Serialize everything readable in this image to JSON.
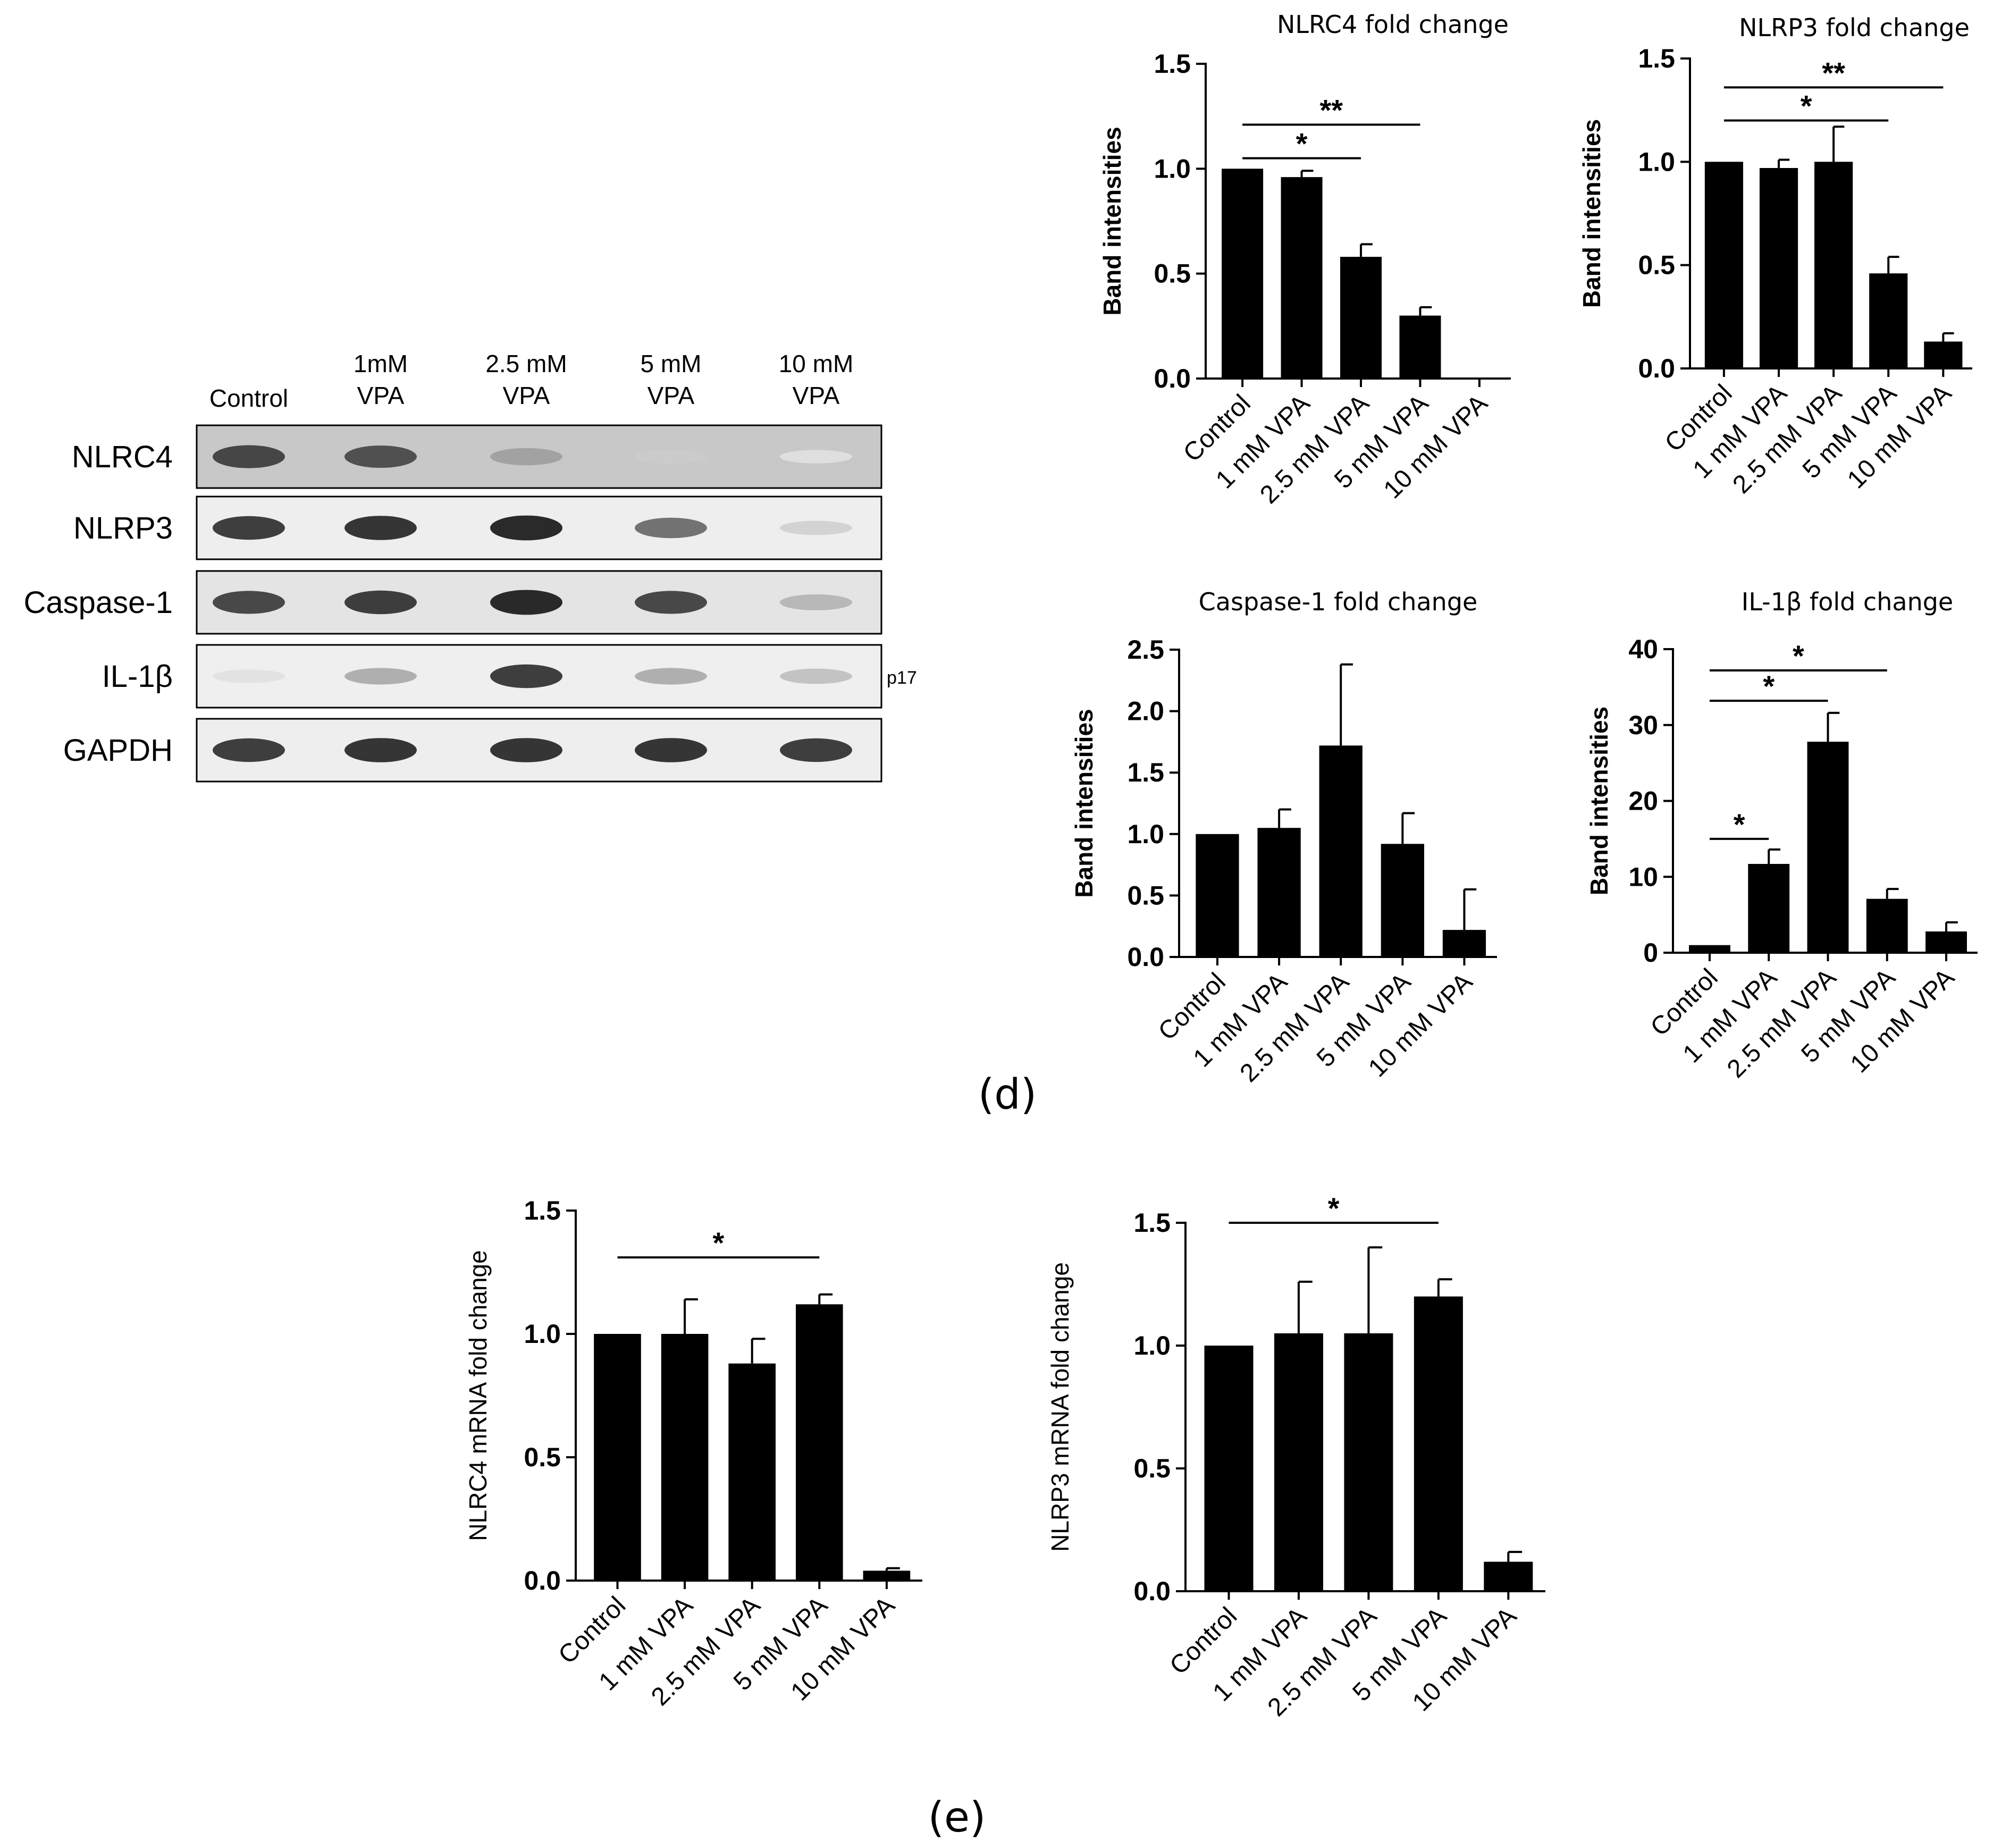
{
  "figure": {
    "panel_labels": [
      "(d)",
      "(e)"
    ]
  },
  "western_blot": {
    "lane_labels": [
      [
        "Control"
      ],
      [
        "1mM",
        "VPA"
      ],
      [
        "2.5 mM",
        "VPA"
      ],
      [
        "5 mM",
        "VPA"
      ],
      [
        "10 mM",
        "VPA"
      ]
    ],
    "rows": [
      {
        "label": "NLRC4",
        "band_intensity": [
          0.8,
          0.75,
          0.35,
          0.15,
          0.05
        ],
        "background": "#c8c8c8"
      },
      {
        "label": "NLRP3",
        "band_intensity": [
          0.85,
          0.9,
          0.95,
          0.6,
          0.12
        ],
        "background": "#eeeeee"
      },
      {
        "label": "Caspase-1",
        "band_intensity": [
          0.8,
          0.85,
          0.95,
          0.8,
          0.25
        ],
        "background": "#e4e4e4"
      },
      {
        "label": "IL-1β",
        "band_intensity": [
          0.05,
          0.3,
          0.85,
          0.3,
          0.2
        ],
        "background": "#efefef",
        "side_label": "p17"
      },
      {
        "label": "GAPDH",
        "band_intensity": [
          0.85,
          0.9,
          0.9,
          0.9,
          0.85
        ],
        "background": "#eeeeee"
      }
    ]
  },
  "chart_data": [
    {
      "type": "bar",
      "title": "NLRC4 fold change",
      "ylabel": "Band intensities",
      "ylim": [
        0,
        1.5
      ],
      "yticks": [
        "0.0",
        "0.5",
        "1.0",
        "1.5"
      ],
      "categories": [
        "Control",
        "1 mM VPA",
        "2.5 mM VPA",
        "5 mM VPA",
        "10 mM VPA"
      ],
      "values": [
        1.0,
        0.96,
        0.58,
        0.3,
        0.0
      ],
      "errors": [
        0.0,
        0.03,
        0.06,
        0.04,
        0.0
      ],
      "significance": [
        {
          "from": 0,
          "to": 2,
          "label": "*",
          "y": 1.05
        },
        {
          "from": 0,
          "to": 3,
          "label": "**",
          "y": 1.21
        }
      ]
    },
    {
      "type": "bar",
      "title": "NLRP3 fold change",
      "ylabel": "Band intensities",
      "ylim": [
        0,
        1.5
      ],
      "yticks": [
        "0.0",
        "0.5",
        "1.0",
        "1.5"
      ],
      "categories": [
        "Control",
        "1 mM VPA",
        "2.5 mM VPA",
        "5 mM VPA",
        "10 mM VPA"
      ],
      "values": [
        1.0,
        0.97,
        1.0,
        0.46,
        0.13
      ],
      "errors": [
        0.0,
        0.04,
        0.17,
        0.08,
        0.04
      ],
      "significance": [
        {
          "from": 0,
          "to": 3,
          "label": "*",
          "y": 1.2
        },
        {
          "from": 0,
          "to": 4,
          "label": "**",
          "y": 1.36
        }
      ]
    },
    {
      "type": "bar",
      "title": "Caspase-1 fold change",
      "ylabel": "Band intensities",
      "ylim": [
        0,
        2.5
      ],
      "yticks": [
        "0.0",
        "0.5",
        "1.0",
        "1.5",
        "2.0",
        "2.5"
      ],
      "categories": [
        "Control",
        "1 mM VPA",
        "2.5 mM VPA",
        "5 mM VPA",
        "10 mM VPA"
      ],
      "values": [
        1.0,
        1.05,
        1.72,
        0.92,
        0.22
      ],
      "errors": [
        0.0,
        0.15,
        0.66,
        0.25,
        0.33
      ],
      "significance": []
    },
    {
      "type": "bar",
      "title": "IL-1β fold change",
      "ylabel": "Band intensities",
      "ylim": [
        0,
        40
      ],
      "yticks": [
        "0",
        "10",
        "20",
        "30",
        "40"
      ],
      "categories": [
        "Control",
        "1 mM VPA",
        "2.5 mM VPA",
        "5 mM VPA",
        "10 mM VPA"
      ],
      "values": [
        1.0,
        11.7,
        27.8,
        7.1,
        2.8
      ],
      "errors": [
        0.0,
        1.9,
        3.8,
        1.3,
        1.2
      ],
      "significance": [
        {
          "from": 0,
          "to": 1,
          "label": "*",
          "y": 15.0
        },
        {
          "from": 0,
          "to": 2,
          "label": "*",
          "y": 33.2
        },
        {
          "from": 0,
          "to": 3,
          "label": "*",
          "y": 37.2
        }
      ]
    },
    {
      "type": "bar",
      "title": "",
      "ylabel": "NLRC4 mRNA fold change",
      "ylim": [
        0,
        1.5
      ],
      "yticks": [
        "0.0",
        "0.5",
        "1.0",
        "1.5"
      ],
      "categories": [
        "Control",
        "1 mM VPA",
        "2.5 mM VPA",
        "5 mM VPA",
        "10 mM VPA"
      ],
      "values": [
        1.0,
        1.0,
        0.88,
        1.12,
        0.04
      ],
      "errors": [
        0.0,
        0.14,
        0.1,
        0.04,
        0.01
      ],
      "significance": [
        {
          "from": 0,
          "to": 3,
          "label": "*",
          "y": 1.31
        }
      ]
    },
    {
      "type": "bar",
      "title": "",
      "ylabel": "NLRP3 mRNA fold change",
      "ylim": [
        0,
        1.5
      ],
      "yticks": [
        "0.0",
        "0.5",
        "1.0",
        "1.5"
      ],
      "categories": [
        "Control",
        "1 mM VPA",
        "2.5 mM VPA",
        "5 mM VPA",
        "10 mM VPA"
      ],
      "values": [
        1.0,
        1.05,
        1.05,
        1.2,
        0.12
      ],
      "errors": [
        0.0,
        0.21,
        0.35,
        0.07,
        0.04
      ],
      "significance": [
        {
          "from": 0,
          "to": 3,
          "label": "*",
          "y": 1.5
        }
      ]
    }
  ]
}
